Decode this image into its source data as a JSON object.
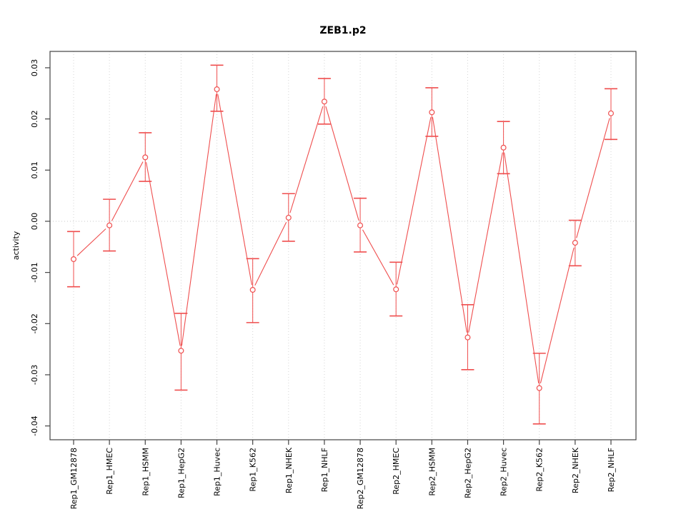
{
  "title": "ZEB1.p2",
  "colors": {
    "series": "#ef4e4e",
    "grid": "#d4d4d4",
    "zero_line": "#c9c9c9",
    "axis": "#444444",
    "text": "#000000",
    "background": "#ffffff"
  },
  "chart_data": {
    "type": "line",
    "title": "ZEB1.p2",
    "xlabel": "",
    "ylabel": "activity",
    "legend": "none",
    "grid": "vertical dotted gridline at each category; horizontal dotted line at y=0",
    "marker": "open-circle",
    "error_bars": true,
    "categories": [
      "Rep1_GM12878",
      "Rep1_HMEC",
      "Rep1_HSMM",
      "Rep1_HepG2",
      "Rep1_Huvec",
      "Rep1_K562",
      "Rep1_NHEK",
      "Rep1_NHLF",
      "Rep2_GM12878",
      "Rep2_HMEC",
      "Rep2_HSMM",
      "Rep2_HepG2",
      "Rep2_Huvec",
      "Rep2_K562",
      "Rep2_NHEK",
      "Rep2_NHLF"
    ],
    "series": [
      {
        "name": "activity",
        "values": [
          -0.0074,
          -0.0008,
          0.0125,
          -0.0253,
          0.0258,
          -0.0134,
          0.0007,
          0.0234,
          -0.0008,
          -0.0133,
          0.0213,
          -0.0227,
          0.0144,
          -0.0326,
          -0.0042,
          0.0211
        ],
        "upper": [
          -0.002,
          0.0043,
          0.0173,
          -0.018,
          0.0305,
          -0.0073,
          0.0054,
          0.0279,
          0.0045,
          -0.008,
          0.0261,
          -0.0163,
          0.0195,
          -0.0258,
          0.0002,
          0.0259
        ],
        "lower": [
          -0.0128,
          -0.0058,
          0.0078,
          -0.033,
          0.0215,
          -0.0198,
          -0.0039,
          0.019,
          -0.006,
          -0.0185,
          0.0166,
          -0.029,
          0.0093,
          -0.0396,
          -0.0087,
          0.016
        ]
      }
    ],
    "ylim": [
      -0.0427,
      0.0332
    ],
    "yticks": [
      0.03,
      0.02,
      0.01,
      0.0,
      -0.01,
      -0.02,
      -0.03,
      -0.04
    ],
    "ytick_labels": [
      "0.03",
      "0.02",
      "0.01",
      "0.00",
      "-0.01",
      "-0.02",
      "-0.03",
      "-0.04"
    ]
  }
}
